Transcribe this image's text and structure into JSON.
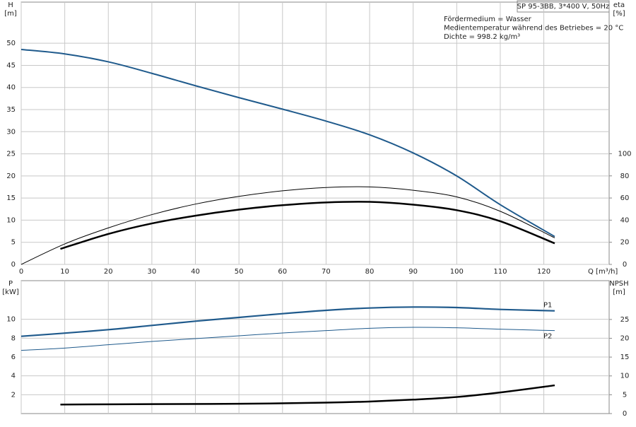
{
  "chart_data": [
    {
      "type": "line",
      "title": "SP 95-3BB, 3*400 V, 50Hz",
      "annotations": [
        "Fördermedium = Wasser",
        "Medientemperatur während des Betriebes = 20 °C",
        "Dichte = 998.2 kg/m³"
      ],
      "x_label": "Q [m³/h]",
      "y_label": "H",
      "y_unit": "[m]",
      "y2_label": "eta",
      "y2_unit": "[%]",
      "xlim": [
        0,
        135
      ],
      "xticks": [
        0,
        10,
        20,
        30,
        40,
        50,
        60,
        70,
        80,
        90,
        100,
        110,
        120
      ],
      "ylim": [
        0,
        59.3
      ],
      "yticks": [
        0,
        5,
        10,
        15,
        20,
        25,
        30,
        35,
        40,
        45,
        50
      ],
      "y2lim": [
        0,
        237
      ],
      "y2ticks": [
        0,
        20,
        40,
        60,
        80,
        100
      ],
      "grid": true,
      "series": [
        {
          "color": "#1f5a8c",
          "x": [
            0,
            10,
            20,
            30,
            40,
            50,
            60,
            70,
            80,
            90,
            100,
            110,
            122.5
          ],
          "values": [
            48.6,
            47.6,
            45.8,
            43.2,
            40.4,
            37.7,
            35.1,
            32.4,
            29.3,
            25.2,
            20.0,
            13.5,
            6.3
          ]
        },
        {
          "color": "#000000",
          "axis": "y2",
          "x": [
            0,
            10,
            20,
            30,
            40,
            50,
            60,
            70,
            80,
            90,
            100,
            110,
            122.5
          ],
          "values": [
            0,
            18.5,
            33,
            45,
            54.5,
            61.5,
            66.5,
            69.5,
            70,
            67,
            61,
            48,
            24
          ]
        },
        {
          "color": "#000000",
          "axis": "y2",
          "x": [
            9,
            20,
            30,
            40,
            50,
            60,
            70,
            80,
            90,
            100,
            110,
            122.5
          ],
          "values": [
            14,
            27.5,
            37,
            44,
            49.5,
            53.5,
            56,
            56.5,
            54,
            49,
            39,
            19
          ]
        }
      ]
    },
    {
      "type": "line",
      "y_label": "P",
      "y_unit": "[kW]",
      "y2_label": "NPSH",
      "y2_unit": "[m]",
      "xlim": [
        0,
        135
      ],
      "ylim": [
        0,
        14.1
      ],
      "yticks": [
        2,
        4,
        6,
        8,
        10
      ],
      "y2lim": [
        0,
        35.3
      ],
      "y2ticks": [
        0,
        5,
        10,
        15,
        20,
        25
      ],
      "grid": true,
      "series": [
        {
          "name": "P1",
          "color": "#1f5a8c",
          "x": [
            0,
            9,
            20,
            30,
            40,
            50,
            60,
            70,
            80,
            90,
            100,
            110,
            122.5
          ],
          "values": [
            8.2,
            8.5,
            8.9,
            9.35,
            9.8,
            10.2,
            10.6,
            10.95,
            11.2,
            11.3,
            11.25,
            11.05,
            10.9
          ]
        },
        {
          "name": "P2",
          "color": "#1f5a8c",
          "x": [
            0,
            10,
            20,
            30,
            40,
            50,
            60,
            70,
            80,
            90,
            100,
            110,
            122.5
          ],
          "values": [
            6.7,
            6.95,
            7.3,
            7.65,
            7.95,
            8.25,
            8.55,
            8.8,
            9.05,
            9.15,
            9.1,
            8.95,
            8.8
          ]
        },
        {
          "color": "#000000",
          "axis": "y2",
          "x": [
            9,
            30,
            50,
            70,
            80,
            90,
            100,
            110,
            122.5
          ],
          "values": [
            2.4,
            2.5,
            2.6,
            2.9,
            3.2,
            3.7,
            4.4,
            5.6,
            7.5
          ]
        }
      ]
    }
  ]
}
